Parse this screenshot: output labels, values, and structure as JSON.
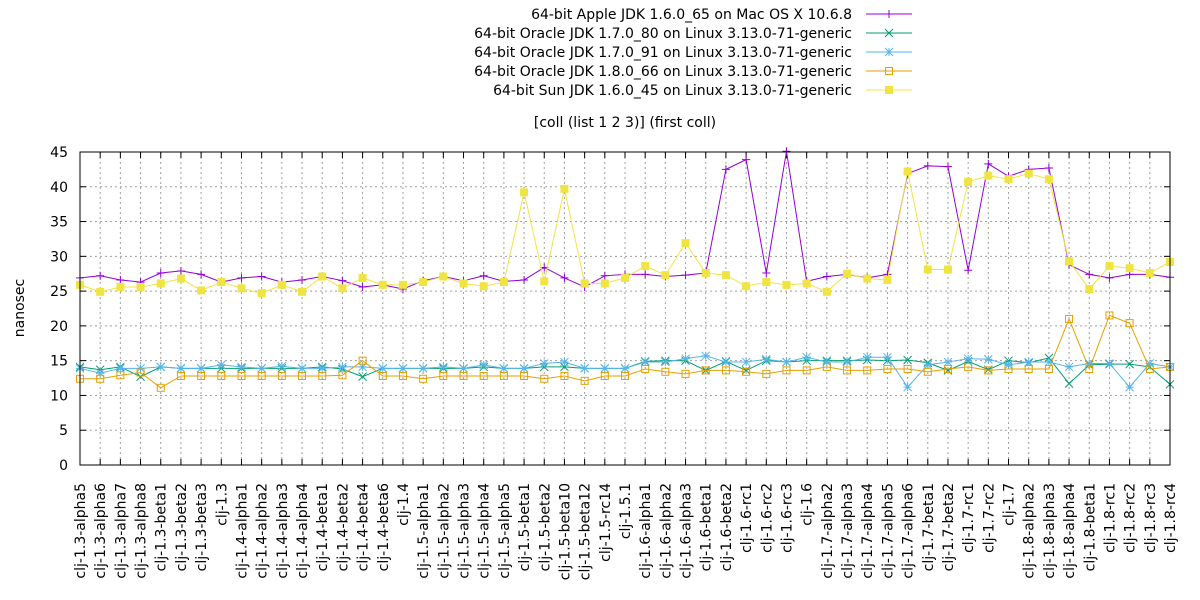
{
  "chart_data": {
    "type": "line",
    "title": "[coll (list 1 2 3)] (first coll)",
    "xlabel": "",
    "ylabel": "nanosec",
    "ylim": [
      0,
      45
    ],
    "yticks": [
      0,
      5,
      10,
      15,
      20,
      25,
      30,
      35,
      40,
      45
    ],
    "grid": true,
    "legend_position": "top-right",
    "categories": [
      "clj-1.3-alpha5",
      "clj-1.3-alpha6",
      "clj-1.3-alpha7",
      "clj-1.3-alpha8",
      "clj-1.3-beta1",
      "clj-1.3-beta2",
      "clj-1.3-beta3",
      "clj-1.3",
      "clj-1.4-alpha1",
      "clj-1.4-alpha2",
      "clj-1.4-alpha3",
      "clj-1.4-alpha4",
      "clj-1.4-beta1",
      "clj-1.4-beta2",
      "clj-1.4-beta4",
      "clj-1.4-beta6",
      "clj-1.4",
      "clj-1.5-alpha1",
      "clj-1.5-alpha2",
      "clj-1.5-alpha3",
      "clj-1.5-alpha4",
      "clj-1.5-alpha5",
      "clj-1.5-beta1",
      "clj-1.5-beta2",
      "clj-1.5-beta10",
      "clj-1.5-beta12",
      "clj-1.5-rc14",
      "clj-1.5.1",
      "clj-1.6-alpha1",
      "clj-1.6-alpha2",
      "clj-1.6-alpha3",
      "clj-1.6-beta1",
      "clj-1.6-beta2",
      "clj-1.6-rc1",
      "clj-1.6-rc2",
      "clj-1.6-rc3",
      "clj-1.6",
      "clj-1.7-alpha2",
      "clj-1.7-alpha3",
      "clj-1.7-alpha4",
      "clj-1.7-alpha5",
      "clj-1.7-alpha6",
      "clj-1.7-beta1",
      "clj-1.7-beta2",
      "clj-1.7-rc1",
      "clj-1.7-rc2",
      "clj-1.7",
      "clj-1.8-alpha2",
      "clj-1.8-alpha3",
      "clj-1.8-alpha4",
      "clj-1.8-beta1",
      "clj-1.8-rc1",
      "clj-1.8-rc2",
      "clj-1.8-rc3",
      "clj-1.8-rc4"
    ],
    "series": [
      {
        "name": "64-bit Apple JDK 1.6.0_65 on Mac OS X 10.6.8",
        "color": "#9400d3",
        "marker": "plus",
        "values": [
          26.9,
          27.2,
          26.6,
          26.3,
          27.6,
          27.9,
          27.4,
          26.3,
          26.9,
          27.1,
          26.3,
          26.6,
          27.1,
          26.5,
          25.6,
          25.9,
          25.3,
          26.5,
          27.1,
          26.5,
          27.2,
          26.4,
          26.6,
          28.4,
          26.9,
          25.6,
          27.2,
          27.4,
          27.4,
          27.1,
          27.3,
          27.6,
          42.5,
          43.9,
          27.6,
          45.1,
          26.4,
          27.1,
          27.4,
          26.9,
          27.4,
          41.9,
          43.0,
          42.9,
          28.0,
          43.3,
          41.5,
          42.5,
          42.7,
          28.8,
          27.4,
          26.9,
          27.4,
          27.4,
          27.0
        ]
      },
      {
        "name": "64-bit Oracle JDK 1.7.0_80 on Linux 3.13.0-71-generic",
        "color": "#009e73",
        "marker": "cross",
        "values": [
          14.1,
          13.7,
          14.1,
          12.7,
          14.1,
          13.9,
          13.9,
          13.9,
          13.9,
          13.9,
          13.9,
          13.9,
          14.1,
          13.8,
          12.7,
          13.9,
          13.9,
          13.9,
          13.9,
          13.9,
          14.1,
          13.9,
          13.9,
          14.1,
          14.1,
          13.9,
          13.9,
          13.9,
          14.9,
          15.0,
          15.0,
          13.6,
          14.9,
          13.6,
          15.0,
          14.8,
          15.0,
          15.0,
          15.0,
          15.1,
          15.0,
          15.1,
          14.7,
          13.6,
          14.9,
          13.7,
          15.0,
          14.7,
          15.4,
          11.7,
          14.4,
          14.5,
          14.5,
          14.1,
          11.6
        ]
      },
      {
        "name": "64-bit Oracle JDK 1.7.0_91 on Linux 3.13.0-71-generic",
        "color": "#56b4e9",
        "marker": "star",
        "values": [
          13.9,
          13.2,
          13.9,
          13.9,
          14.1,
          13.9,
          13.9,
          14.4,
          14.1,
          13.9,
          14.2,
          13.9,
          13.9,
          14.1,
          14.1,
          13.9,
          13.9,
          13.9,
          14.1,
          13.9,
          14.4,
          13.9,
          13.9,
          14.6,
          14.8,
          13.9,
          13.9,
          13.9,
          14.8,
          14.8,
          15.3,
          15.7,
          14.8,
          14.8,
          15.2,
          14.8,
          15.5,
          14.8,
          14.8,
          15.5,
          15.5,
          11.2,
          14.4,
          14.8,
          15.3,
          15.2,
          14.4,
          14.8,
          14.8,
          14.1,
          14.6,
          14.6,
          11.2,
          14.6,
          14.1
        ]
      },
      {
        "name": "64-bit Oracle JDK 1.8.0_66 on Linux 3.13.0-71-generic",
        "color": "#e69f00",
        "marker": "square",
        "values": [
          12.4,
          12.4,
          12.9,
          13.3,
          11.1,
          12.8,
          12.8,
          12.8,
          12.8,
          12.8,
          12.8,
          12.8,
          12.8,
          12.9,
          15.0,
          12.8,
          12.8,
          12.4,
          12.8,
          12.8,
          12.8,
          12.8,
          12.8,
          12.4,
          12.8,
          12.1,
          12.8,
          12.8,
          13.8,
          13.4,
          13.1,
          13.6,
          13.6,
          13.4,
          13.1,
          13.6,
          13.6,
          14.1,
          13.6,
          13.6,
          13.8,
          13.8,
          13.4,
          13.8,
          14.1,
          13.6,
          13.8,
          13.8,
          13.8,
          21.0,
          13.8,
          21.5,
          20.4,
          13.8,
          14.1
        ]
      },
      {
        "name": "64-bit Sun JDK 1.6.0_45 on Linux 3.13.0-71-generic",
        "color": "#f0e442",
        "marker": "filled-square",
        "values": [
          25.9,
          24.9,
          25.6,
          25.6,
          26.1,
          26.8,
          25.1,
          26.3,
          25.4,
          24.7,
          25.9,
          24.9,
          27.1,
          25.4,
          26.9,
          25.9,
          25.9,
          26.3,
          27.1,
          26.1,
          25.7,
          26.3,
          39.2,
          26.4,
          39.7,
          26.1,
          26.1,
          26.9,
          28.6,
          27.3,
          31.9,
          27.6,
          27.3,
          25.7,
          26.3,
          25.9,
          26.1,
          24.9,
          27.5,
          26.8,
          26.6,
          42.2,
          28.1,
          28.1,
          40.7,
          41.6,
          41.1,
          41.9,
          41.1,
          29.3,
          25.3,
          28.6,
          28.3,
          27.6,
          29.2
        ]
      }
    ]
  }
}
